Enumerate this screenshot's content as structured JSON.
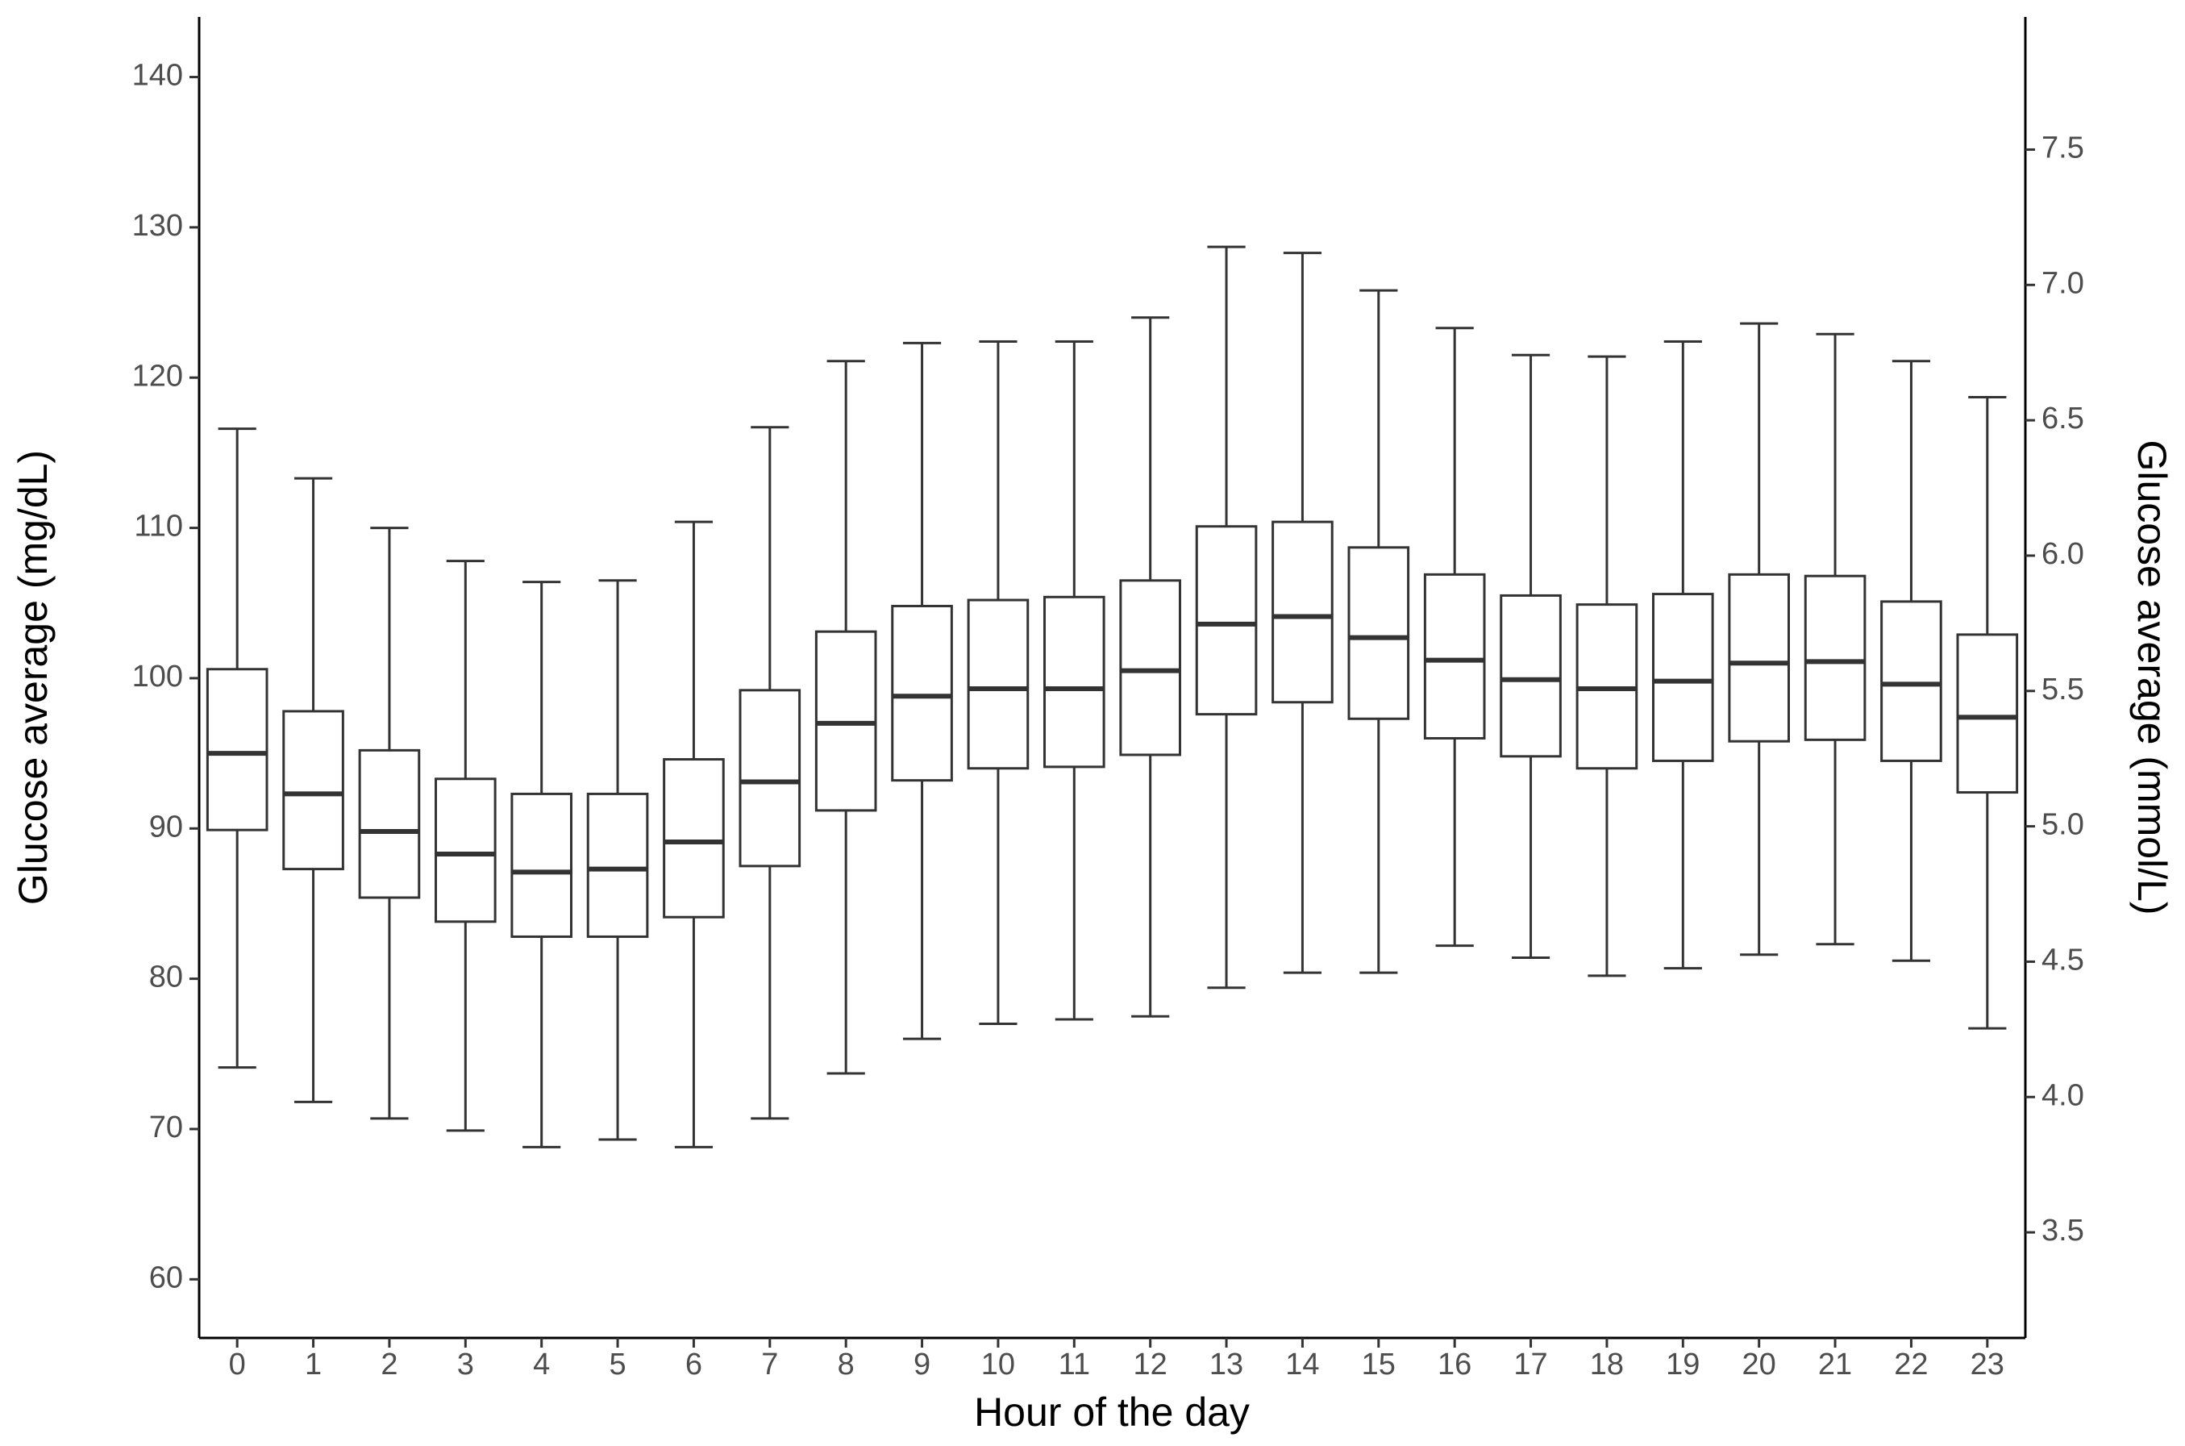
{
  "chart_data": {
    "type": "box",
    "x_label": "Hour of the day",
    "y_label": "Glucose average (mg/dL)",
    "y2_label": "Glucose average (mmol/L)",
    "categories": [
      "0",
      "1",
      "2",
      "3",
      "4",
      "5",
      "6",
      "7",
      "8",
      "9",
      "10",
      "11",
      "12",
      "13",
      "14",
      "15",
      "16",
      "17",
      "18",
      "19",
      "20",
      "21",
      "22",
      "23"
    ],
    "boxes": [
      {
        "low": 74.1,
        "q1": 89.9,
        "median": 95.0,
        "q3": 100.6,
        "high": 116.6
      },
      {
        "low": 71.8,
        "q1": 87.3,
        "median": 92.3,
        "q3": 97.8,
        "high": 113.3
      },
      {
        "low": 70.7,
        "q1": 85.4,
        "median": 89.8,
        "q3": 95.2,
        "high": 110.0
      },
      {
        "low": 69.9,
        "q1": 83.8,
        "median": 88.3,
        "q3": 93.3,
        "high": 107.8
      },
      {
        "low": 68.8,
        "q1": 82.8,
        "median": 87.1,
        "q3": 92.3,
        "high": 106.4
      },
      {
        "low": 69.3,
        "q1": 82.8,
        "median": 87.3,
        "q3": 92.3,
        "high": 106.5
      },
      {
        "low": 68.8,
        "q1": 84.1,
        "median": 89.1,
        "q3": 94.6,
        "high": 110.4
      },
      {
        "low": 70.7,
        "q1": 87.5,
        "median": 93.1,
        "q3": 99.2,
        "high": 116.7
      },
      {
        "low": 73.7,
        "q1": 91.2,
        "median": 97.0,
        "q3": 103.1,
        "high": 121.1
      },
      {
        "low": 76.0,
        "q1": 93.2,
        "median": 98.8,
        "q3": 104.8,
        "high": 122.3
      },
      {
        "low": 77.0,
        "q1": 94.0,
        "median": 99.3,
        "q3": 105.2,
        "high": 122.4
      },
      {
        "low": 77.3,
        "q1": 94.1,
        "median": 99.3,
        "q3": 105.4,
        "high": 122.4
      },
      {
        "low": 77.5,
        "q1": 94.9,
        "median": 100.5,
        "q3": 106.5,
        "high": 124.0
      },
      {
        "low": 79.4,
        "q1": 97.6,
        "median": 103.6,
        "q3": 110.1,
        "high": 128.7
      },
      {
        "low": 80.4,
        "q1": 98.4,
        "median": 104.1,
        "q3": 110.4,
        "high": 128.3
      },
      {
        "low": 80.4,
        "q1": 97.3,
        "median": 102.7,
        "q3": 108.7,
        "high": 125.8
      },
      {
        "low": 82.2,
        "q1": 96.0,
        "median": 101.2,
        "q3": 106.9,
        "high": 123.3
      },
      {
        "low": 81.4,
        "q1": 94.8,
        "median": 99.9,
        "q3": 105.5,
        "high": 121.5
      },
      {
        "low": 80.2,
        "q1": 94.0,
        "median": 99.3,
        "q3": 104.9,
        "high": 121.4
      },
      {
        "low": 80.7,
        "q1": 94.5,
        "median": 99.8,
        "q3": 105.6,
        "high": 122.4
      },
      {
        "low": 81.6,
        "q1": 95.8,
        "median": 101.0,
        "q3": 106.9,
        "high": 123.6
      },
      {
        "low": 82.3,
        "q1": 95.9,
        "median": 101.1,
        "q3": 106.8,
        "high": 122.9
      },
      {
        "low": 81.2,
        "q1": 94.5,
        "median": 99.6,
        "q3": 105.1,
        "high": 121.1
      },
      {
        "low": 76.7,
        "q1": 92.4,
        "median": 97.4,
        "q3": 102.9,
        "high": 118.7
      }
    ],
    "color": "#333333",
    "ylim": [
      56.1,
      144.0
    ],
    "yticks": [
      60,
      70,
      80,
      90,
      100,
      110,
      120,
      130,
      140
    ],
    "y2lim": [
      3.11,
      7.99
    ],
    "y2ticks": [
      3.5,
      {
        "value": 4,
        "label": "4.0"
      },
      4.5,
      {
        "value": 5,
        "label": "5.0"
      },
      5.5,
      {
        "value": 6,
        "label": "6.0"
      },
      6.5,
      {
        "value": 7,
        "label": "7.0"
      },
      7.5
    ],
    "grid": false
  }
}
